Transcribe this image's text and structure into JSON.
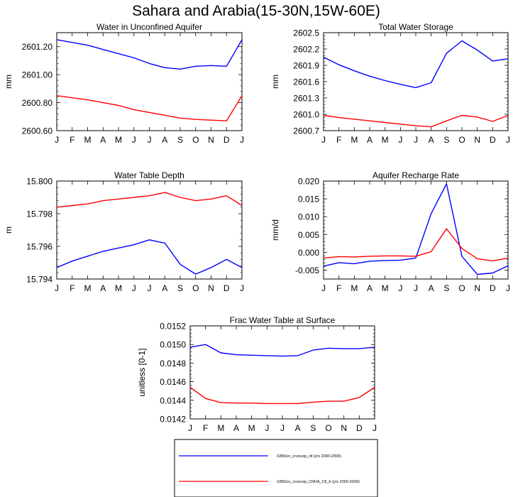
{
  "figure_title": "Sahara and Arabia(15-30N,15W-60E)",
  "legend": {
    "entries": [
      {
        "label": "i1850cn_cruncep_ctl (yrs 2000-2009)",
        "color": "#0000ff"
      },
      {
        "label": "i1850cn_cruncep_CNDA_Ctl_b (yrs 2000-2009)",
        "color": "#ff0000"
      }
    ]
  },
  "chart_data": [
    {
      "type": "line",
      "title": "Water in Unconfined Aquifer",
      "ylabel": "mm",
      "xlabel": "",
      "x": [
        "J",
        "F",
        "M",
        "A",
        "M",
        "J",
        "J",
        "A",
        "S",
        "O",
        "N",
        "D",
        "J"
      ],
      "ylim": [
        2600.6,
        2601.3
      ],
      "yticks": [
        2600.6,
        2600.8,
        2601.0,
        2601.2
      ],
      "ytick_labels": [
        "2600.60",
        "2600.80",
        "2601.00",
        "2601.20"
      ],
      "series": [
        {
          "color": "#0000ff",
          "values": [
            2601.25,
            2601.23,
            2601.21,
            2601.18,
            2601.15,
            2601.12,
            2601.08,
            2601.05,
            2601.04,
            2601.06,
            2601.065,
            2601.06,
            2601.25
          ]
        },
        {
          "color": "#ff0000",
          "values": [
            2600.85,
            2600.835,
            2600.82,
            2600.8,
            2600.78,
            2600.75,
            2600.73,
            2600.71,
            2600.69,
            2600.68,
            2600.675,
            2600.67,
            2600.85
          ]
        }
      ]
    },
    {
      "type": "line",
      "title": "Total Water Storage",
      "ylabel": "mm",
      "xlabel": "",
      "x": [
        "J",
        "F",
        "M",
        "A",
        "M",
        "J",
        "J",
        "A",
        "S",
        "O",
        "N",
        "D",
        "J"
      ],
      "ylim": [
        2600.7,
        2602.5
      ],
      "yticks": [
        2600.7,
        2601.0,
        2601.3,
        2601.6,
        2601.9,
        2602.2,
        2602.5
      ],
      "ytick_labels": [
        "2600.7",
        "2601.0",
        "2601.3",
        "2601.6",
        "2601.9",
        "2602.2",
        "2602.5"
      ],
      "series": [
        {
          "color": "#0000ff",
          "values": [
            2602.05,
            2601.91,
            2601.8,
            2601.7,
            2601.62,
            2601.55,
            2601.49,
            2601.58,
            2602.12,
            2602.35,
            2602.18,
            2601.98,
            2602.02
          ]
        },
        {
          "color": "#ff0000",
          "values": [
            2600.98,
            2600.94,
            2600.91,
            2600.88,
            2600.85,
            2600.82,
            2600.79,
            2600.77,
            2600.88,
            2600.98,
            2600.95,
            2600.87,
            2600.98
          ]
        }
      ]
    },
    {
      "type": "line",
      "title": "Water Table Depth",
      "ylabel": "m",
      "xlabel": "",
      "x": [
        "J",
        "F",
        "M",
        "A",
        "M",
        "J",
        "J",
        "A",
        "S",
        "O",
        "N",
        "D",
        "J"
      ],
      "ylim": [
        15.794,
        15.8
      ],
      "yticks": [
        15.794,
        15.796,
        15.798,
        15.8
      ],
      "ytick_labels": [
        "15.794",
        "15.796",
        "15.798",
        "15.800"
      ],
      "series": [
        {
          "color": "#0000ff",
          "values": [
            15.7947,
            15.7951,
            15.7954,
            15.7957,
            15.7959,
            15.7961,
            15.7964,
            15.7962,
            15.7949,
            15.7943,
            15.7947,
            15.7952,
            15.7947
          ]
        },
        {
          "color": "#ff0000",
          "values": [
            15.7984,
            15.7985,
            15.7986,
            15.7988,
            15.7989,
            15.799,
            15.7991,
            15.7993,
            15.799,
            15.7988,
            15.7989,
            15.7991,
            15.7985
          ]
        }
      ]
    },
    {
      "type": "line",
      "title": "Aquifer Recharge Rate",
      "ylabel": "mm/d",
      "xlabel": "",
      "x": [
        "J",
        "F",
        "M",
        "A",
        "M",
        "J",
        "J",
        "A",
        "S",
        "O",
        "N",
        "D",
        "J"
      ],
      "ylim": [
        -0.0075,
        0.02
      ],
      "yticks": [
        -0.005,
        0.0,
        0.005,
        0.01,
        0.015,
        0.02
      ],
      "ytick_labels": [
        "-0.005",
        "0.000",
        "0.005",
        "0.010",
        "0.015",
        "0.020"
      ],
      "series": [
        {
          "color": "#0000ff",
          "values": [
            -0.0039,
            -0.0029,
            -0.0032,
            -0.0025,
            -0.0023,
            -0.0022,
            -0.0016,
            0.0109,
            0.0192,
            -0.0011,
            -0.0062,
            -0.0058,
            -0.0038
          ]
        },
        {
          "color": "#ff0000",
          "values": [
            -0.0016,
            -0.0012,
            -0.0013,
            -0.0011,
            -0.001,
            -0.001,
            -0.0011,
            0.0002,
            0.0066,
            0.0011,
            -0.0018,
            -0.0024,
            -0.0016
          ]
        }
      ]
    },
    {
      "type": "line",
      "title": "Frac Water Table at Surface",
      "ylabel": "unitless [0-1]",
      "xlabel": "",
      "x": [
        "J",
        "F",
        "M",
        "A",
        "M",
        "J",
        "J",
        "A",
        "S",
        "O",
        "N",
        "D",
        "J"
      ],
      "ylim": [
        0.0142,
        0.0152
      ],
      "yticks": [
        0.0142,
        0.0144,
        0.0146,
        0.0148,
        0.015,
        0.0152
      ],
      "ytick_labels": [
        "0.0142",
        "0.0144",
        "0.0146",
        "0.0148",
        "0.0150",
        "0.0152"
      ],
      "series": [
        {
          "color": "#0000ff",
          "values": [
            0.01497,
            0.015,
            0.01491,
            0.01489,
            0.014885,
            0.01488,
            0.014875,
            0.01488,
            0.01494,
            0.01496,
            0.014955,
            0.014955,
            0.01497
          ]
        },
        {
          "color": "#ff0000",
          "values": [
            0.01454,
            0.01442,
            0.014375,
            0.01437,
            0.01437,
            0.014365,
            0.014365,
            0.014365,
            0.01438,
            0.01439,
            0.01439,
            0.01443,
            0.01454
          ]
        }
      ]
    }
  ]
}
